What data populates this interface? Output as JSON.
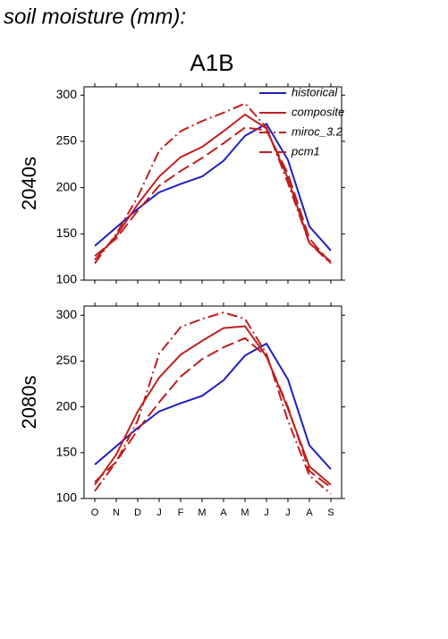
{
  "title": "soil moisture (mm):",
  "subtitle": "A1B",
  "chart_data": [
    {
      "type": "line",
      "ylabel": "2040s",
      "legend": "upper right",
      "categories": [
        null,
        null,
        null,
        null,
        null,
        null,
        null,
        null,
        null,
        null,
        null,
        null
      ],
      "ylim": [
        100,
        309
      ],
      "yticks": [
        100,
        150,
        200,
        250,
        300
      ],
      "series": [
        {
          "name": "historical",
          "color": "#1f1fbf",
          "dash": "solid",
          "values": [
            137,
            157,
            177,
            195,
            204,
            212,
            229,
            256,
            269,
            230,
            158,
            132
          ]
        },
        {
          "name": "composite",
          "color": "#bf1f1f",
          "dash": "solid",
          "values": [
            122,
            148,
            182,
            212,
            233,
            244,
            261,
            279,
            264,
            210,
            140,
            120
          ]
        },
        {
          "name": "miroc_3.2",
          "color": "#bf1f1f",
          "dash": "dashdot",
          "values": [
            118,
            150,
            190,
            240,
            261,
            272,
            281,
            291,
            265,
            205,
            140,
            118
          ]
        },
        {
          "name": "pcm1",
          "color": "#bf1f1f",
          "dash": "dashed",
          "values": [
            126,
            145,
            175,
            202,
            218,
            232,
            248,
            265,
            262,
            215,
            145,
            118
          ]
        }
      ]
    },
    {
      "type": "line",
      "ylabel": "2080s",
      "categories": [
        "O",
        "N",
        "D",
        "J",
        "F",
        "M",
        "A",
        "M",
        "J",
        "J",
        "A",
        "S"
      ],
      "ylim": [
        100,
        310
      ],
      "yticks": [
        100,
        150,
        200,
        250,
        300
      ],
      "series": [
        {
          "name": "historical",
          "color": "#1f1fbf",
          "dash": "solid",
          "values": [
            137,
            157,
            177,
            195,
            204,
            212,
            229,
            256,
            269,
            230,
            158,
            132
          ]
        },
        {
          "name": "composite",
          "color": "#bf1f1f",
          "dash": "solid",
          "values": [
            115,
            148,
            195,
            232,
            257,
            272,
            286,
            288,
            255,
            198,
            135,
            115
          ]
        },
        {
          "name": "miroc_3.2",
          "color": "#bf1f1f",
          "dash": "dashdot",
          "values": [
            108,
            140,
            185,
            258,
            287,
            296,
            303,
            296,
            258,
            185,
            125,
            105
          ]
        },
        {
          "name": "pcm1",
          "color": "#bf1f1f",
          "dash": "dashed",
          "values": [
            118,
            140,
            175,
            205,
            233,
            252,
            265,
            275,
            255,
            200,
            130,
            112
          ]
        }
      ]
    }
  ]
}
